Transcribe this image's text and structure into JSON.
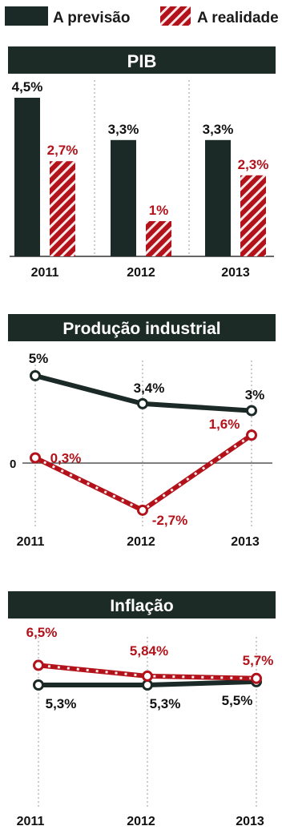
{
  "legend": {
    "forecast_label": "A previsão",
    "actual_label": "A realidade"
  },
  "colors": {
    "forecast": "#1b2a26",
    "actual": "#b3121b",
    "title_bar": "#1d2b27",
    "title_text": "#ffffff",
    "grid": "#9a9a9a",
    "axis": "#333333"
  },
  "chart_data": [
    {
      "type": "bar",
      "title": "PIB",
      "categories": [
        "2011",
        "2012",
        "2013"
      ],
      "series": [
        {
          "name": "A previsão",
          "values": [
            4.5,
            3.3,
            3.3
          ],
          "labels": [
            "4,5%",
            "3,3%",
            "3,3%"
          ]
        },
        {
          "name": "A realidade",
          "values": [
            2.7,
            1.0,
            2.3
          ],
          "labels": [
            "2,7%",
            "1%",
            "2,3%"
          ]
        }
      ],
      "ylim": [
        0,
        5
      ],
      "grid": "vertical dotted separators",
      "legend_position": "top"
    },
    {
      "type": "line",
      "title": "Produção industrial",
      "categories": [
        "2011",
        "2012",
        "2013"
      ],
      "zero_label": "0",
      "series": [
        {
          "name": "A previsão",
          "values": [
            5,
            3.4,
            3
          ],
          "labels": [
            "5%",
            "3,4%",
            "3%"
          ]
        },
        {
          "name": "A realidade",
          "values": [
            0.3,
            -2.7,
            1.6
          ],
          "labels": [
            "0,3%",
            "-2,7%",
            "1,6%"
          ]
        }
      ],
      "ylim": [
        -3.2,
        5.6
      ],
      "grid": "vertical dotted guides",
      "legend_position": "top"
    },
    {
      "type": "line",
      "title": "Inflação",
      "categories": [
        "2011",
        "2012",
        "2013"
      ],
      "series": [
        {
          "name": "A previsão",
          "values": [
            5.3,
            5.3,
            5.5
          ],
          "labels": [
            "5,3%",
            "5,3%",
            "5,5%"
          ]
        },
        {
          "name": "A realidade",
          "values": [
            6.5,
            5.84,
            5.7
          ],
          "labels": [
            "6,5%",
            "5,84%",
            "5,7%"
          ]
        }
      ],
      "ylim": [
        4.8,
        7.0
      ],
      "grid": "vertical dotted guides",
      "legend_position": "top"
    }
  ]
}
